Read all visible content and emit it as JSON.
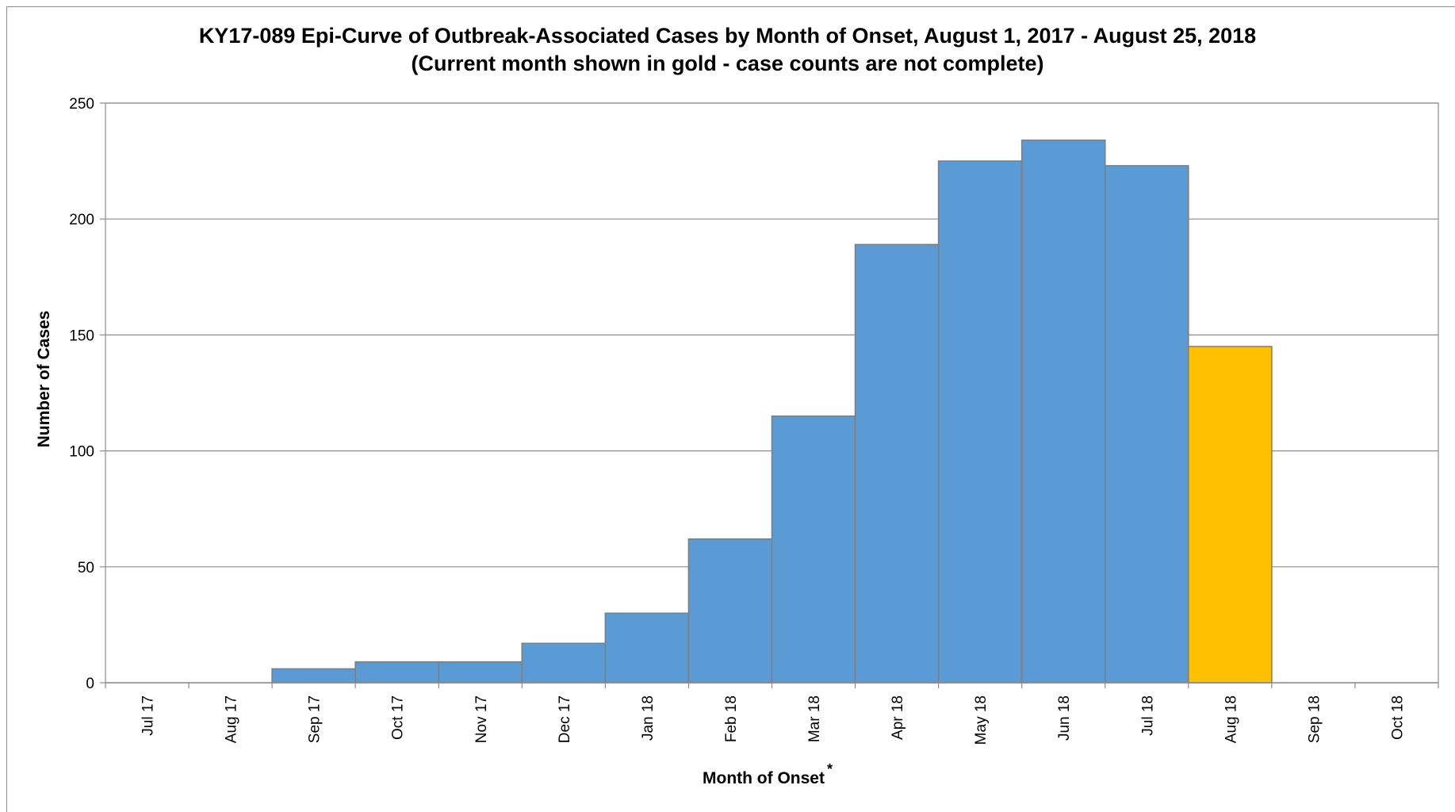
{
  "chart_data": {
    "type": "bar",
    "title": "KY17-089 Epi-Curve of Outbreak-Associated Cases by Month of Onset, August 1, 2017 - August 25, 2018",
    "subtitle": "(Current month shown in gold - case counts are not complete)",
    "xlabel": "Month of Onset",
    "xlabel_marker": "*",
    "ylabel": "Number of Cases",
    "ylim": [
      0,
      250
    ],
    "yticks": [
      0,
      50,
      100,
      150,
      200,
      250
    ],
    "grid": true,
    "categories": [
      "Jul 17",
      "Aug 17",
      "Sep 17",
      "Oct 17",
      "Nov 17",
      "Dec 17",
      "Jan 18",
      "Feb 18",
      "Mar 18",
      "Apr 18",
      "May 18",
      "Jun 18",
      "Jul 18",
      "Aug 18",
      "Sep 18",
      "Oct 18"
    ],
    "values": [
      0,
      0,
      6,
      9,
      9,
      17,
      30,
      62,
      115,
      189,
      225,
      234,
      223,
      145,
      0,
      0
    ],
    "current_month": "Aug 18",
    "colors": {
      "bar": "#5b9bd5",
      "current": "#ffc000",
      "bar_edge": "#7f7f7f",
      "grid": "#8c8c8c"
    }
  }
}
